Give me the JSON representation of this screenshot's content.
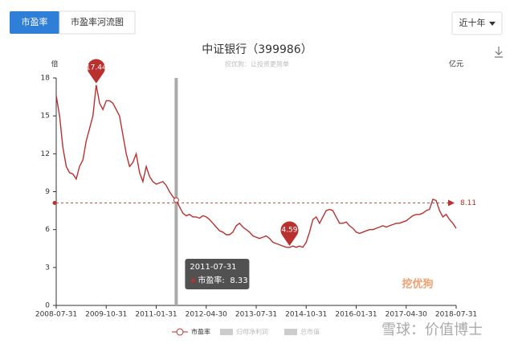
{
  "tabs": [
    "市盈率",
    "市盈率河流图"
  ],
  "range_selector": "近十年",
  "chart_data": {
    "type": "line",
    "title": "中证银行（399986）",
    "subtitle": "挖优狗：让投资更简单",
    "y_label": "倍",
    "y2_label": "亿元",
    "categories": [
      "2008-07-31",
      null,
      null,
      null,
      null,
      null,
      null,
      null,
      null,
      null,
      null,
      null,
      null,
      null,
      null,
      "2009-10-31",
      null,
      null,
      null,
      null,
      null,
      null,
      null,
      null,
      null,
      null,
      null,
      null,
      null,
      null,
      "2011-01-31",
      null,
      null,
      null,
      null,
      null,
      null,
      null,
      null,
      null,
      null,
      null,
      null,
      null,
      null,
      "2012-04-30",
      null,
      null,
      null,
      null,
      null,
      null,
      null,
      null,
      null,
      null,
      null,
      null,
      null,
      null,
      "2013-07-31",
      null,
      null,
      null,
      null,
      null,
      null,
      null,
      null,
      null,
      null,
      null,
      null,
      null,
      null,
      "2014-10-31",
      null,
      null,
      null,
      null,
      null,
      null,
      null,
      null,
      null,
      null,
      null,
      null,
      null,
      null,
      "2016-01-31",
      null,
      null,
      null,
      null,
      null,
      null,
      null,
      null,
      null,
      null,
      null,
      null,
      null,
      null,
      "2017-04-30",
      null,
      null,
      null,
      null,
      null,
      null,
      null,
      null,
      null,
      null,
      null,
      null,
      null,
      null,
      "2018-07-31"
    ],
    "series": [
      {
        "name": "市盈率",
        "color": "#b8312f",
        "values": [
          16.6,
          15,
          12.5,
          11,
          10.5,
          10.4,
          10,
          11,
          11.5,
          13,
          14,
          15,
          17.44,
          16,
          15.5,
          16.2,
          16.2,
          16,
          15.5,
          15,
          13.5,
          12,
          11,
          11.3,
          12,
          10.5,
          9.8,
          11,
          10.2,
          9.8,
          9.6,
          9.7,
          9.8,
          9.5,
          9,
          8.6,
          8.33,
          7.8,
          7.3,
          7.1,
          7.2,
          7,
          7,
          6.9,
          7.1,
          7,
          6.8,
          6.5,
          6.2,
          5.9,
          5.8,
          5.6,
          5.6,
          5.8,
          6.3,
          6.5,
          6.2,
          6,
          5.8,
          5.5,
          5.4,
          5.3,
          5.4,
          5.5,
          5.3,
          5,
          4.9,
          4.8,
          4.7,
          4.6,
          4.59,
          4.7,
          4.6,
          4.7,
          4.6,
          5,
          5.8,
          6.8,
          7,
          6.5,
          7,
          7.5,
          7.6,
          7.5,
          7,
          6.5,
          6.5,
          6.6,
          6.3,
          6.1,
          5.8,
          5.7,
          5.8,
          5.9,
          6,
          6,
          6.1,
          6.2,
          6.3,
          6.2,
          6.3,
          6.4,
          6.5,
          6.5,
          6.6,
          6.7,
          6.9,
          7.1,
          7.2,
          7.2,
          7.3,
          7.5,
          7.6,
          8.4,
          8.3,
          7.5,
          7,
          7.2,
          6.8,
          6.5,
          6.1
        ]
      }
    ],
    "legend_extra": [
      "归母净利润",
      "总市值"
    ],
    "ylim": [
      0,
      18
    ],
    "yticks": [
      0,
      3,
      6,
      9,
      12,
      15,
      18
    ],
    "grid": false,
    "average": 8.11,
    "markers": [
      {
        "index": 12,
        "value": 17.44
      },
      {
        "index": 70,
        "value": 4.59
      }
    ],
    "tooltip": {
      "index": 36,
      "date": "2011-07-31",
      "label": "市盈率:",
      "value": 8.33
    }
  },
  "watermarks": [
    "挖优狗",
    "雪球：价值博士"
  ]
}
